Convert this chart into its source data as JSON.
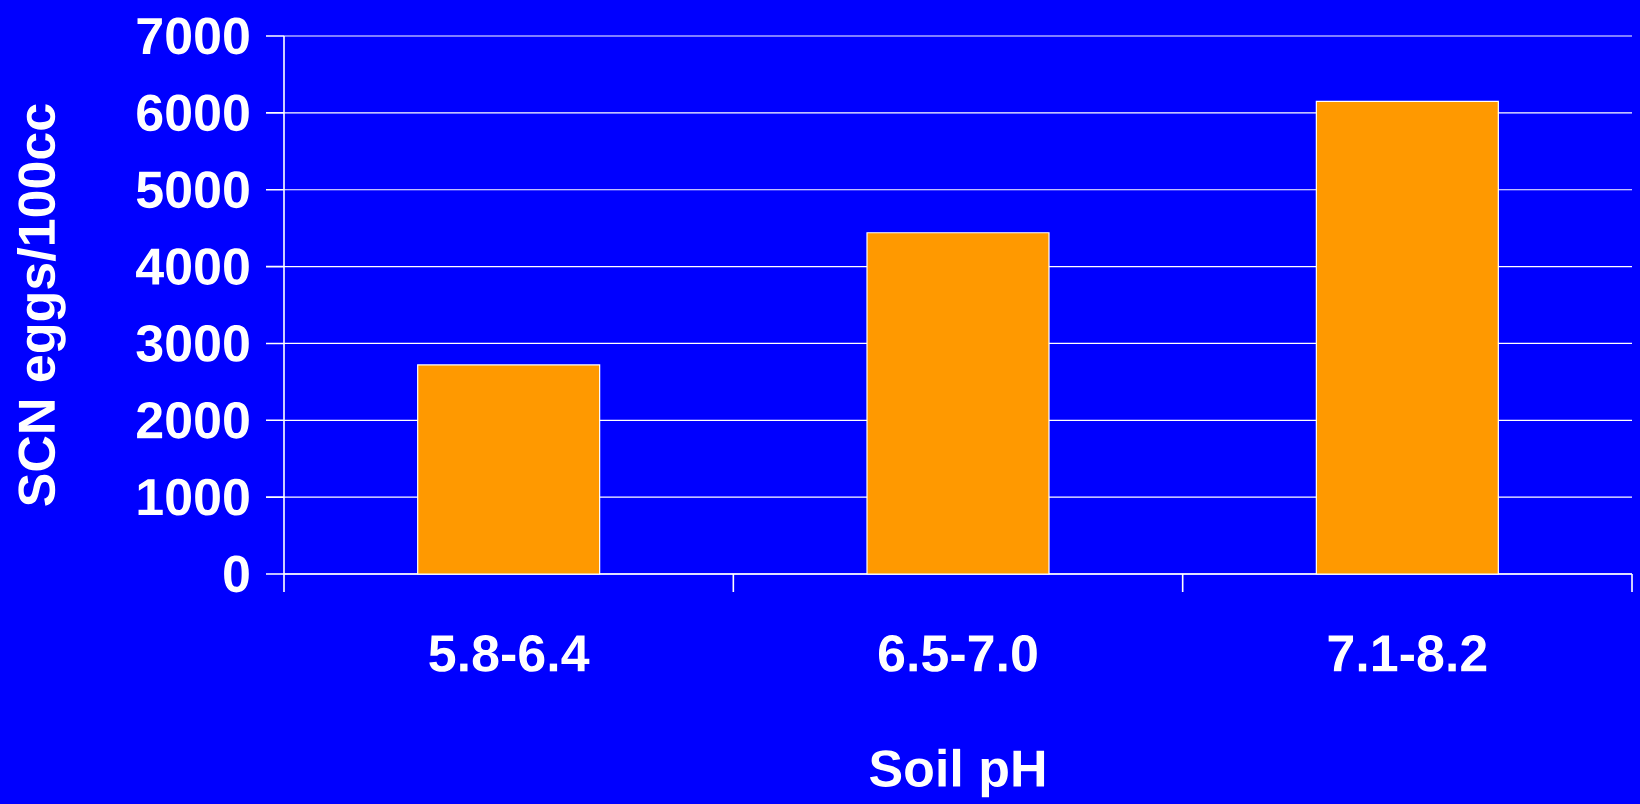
{
  "chart_data": {
    "type": "bar",
    "xlabel": "Soil pH",
    "ylabel": "SCN eggs/100cc",
    "categories": [
      "5.8-6.4",
      "6.5-7.0",
      "7.1-8.2"
    ],
    "values": [
      2720,
      4440,
      6150
    ],
    "color": "#ff9900",
    "ylim": [
      0,
      7000
    ],
    "yticks": [
      0,
      1000,
      2000,
      3000,
      4000,
      5000,
      6000,
      7000
    ],
    "grid": "y"
  }
}
